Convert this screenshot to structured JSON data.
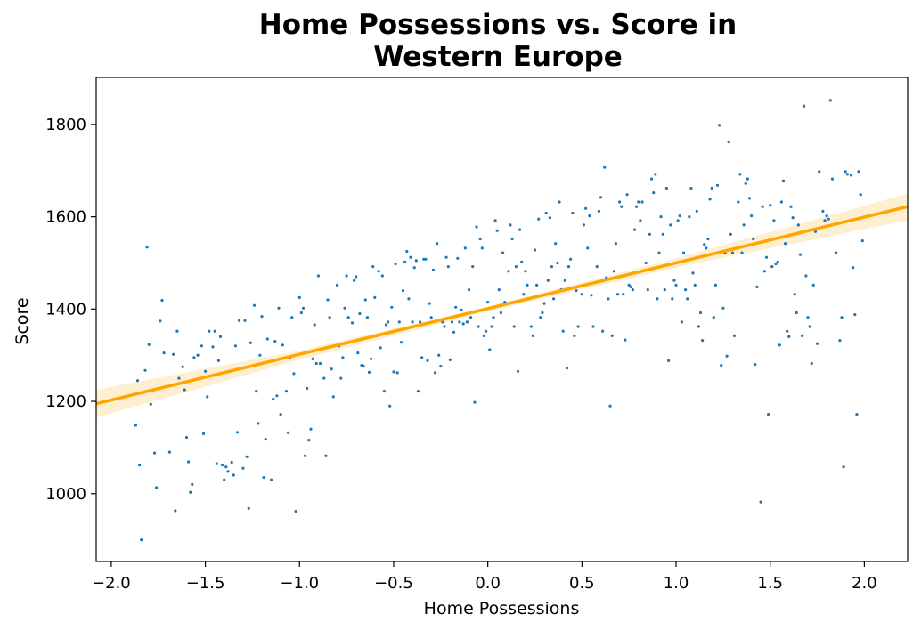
{
  "chart_data": {
    "type": "scatter",
    "title": [
      "Home Possessions vs. Score in",
      "Western Europe"
    ],
    "xlabel": "Home Possessions",
    "ylabel": "Score",
    "xlim": [
      -2.08,
      2.23
    ],
    "ylim": [
      853,
      1902
    ],
    "xticks": [
      -2.0,
      -1.5,
      -1.0,
      -0.5,
      0.0,
      0.5,
      1.0,
      1.5,
      2.0
    ],
    "xtick_labels": [
      "−2.0",
      "−1.5",
      "−1.0",
      "−0.5",
      "0.0",
      "0.5",
      "1.0",
      "1.5",
      "2.0"
    ],
    "yticks": [
      1000,
      1200,
      1400,
      1600,
      1800
    ],
    "ytick_labels": [
      "1000",
      "1200",
      "1400",
      "1600",
      "1800"
    ],
    "grid": false,
    "colors": {
      "points": "#1f77b4",
      "fit_line": "#ffa500",
      "confidence_band": "#ffa500"
    },
    "regression": {
      "x": [
        -2.08,
        2.23
      ],
      "y": [
        1195,
        1622
      ]
    },
    "confidence_band": {
      "x": [
        -2.08,
        -1.0,
        0.0,
        1.0,
        2.23
      ],
      "lower": [
        1165,
        1290,
        1395,
        1490,
        1592
      ],
      "upper": [
        1225,
        1310,
        1405,
        1510,
        1650
      ]
    },
    "points": [
      [
        -1.84,
        900
      ],
      [
        -1.85,
        1062
      ],
      [
        -1.87,
        1148
      ],
      [
        -1.86,
        1245
      ],
      [
        -1.82,
        1267
      ],
      [
        -1.81,
        1534
      ],
      [
        -1.79,
        1194
      ],
      [
        -1.78,
        1222
      ],
      [
        -1.8,
        1323
      ],
      [
        -1.77,
        1088
      ],
      [
        -1.76,
        1013
      ],
      [
        -1.74,
        1374
      ],
      [
        -1.73,
        1419
      ],
      [
        -1.72,
        1305
      ],
      [
        -1.71,
        1232
      ],
      [
        -1.69,
        1090
      ],
      [
        -1.67,
        1302
      ],
      [
        -1.66,
        963
      ],
      [
        -1.65,
        1352
      ],
      [
        -1.64,
        1250
      ],
      [
        -1.62,
        1275
      ],
      [
        -1.61,
        1225
      ],
      [
        -1.6,
        1122
      ],
      [
        -1.59,
        1069
      ],
      [
        -1.58,
        1003
      ],
      [
        -1.57,
        1020
      ],
      [
        -1.56,
        1295
      ],
      [
        -1.54,
        1300
      ],
      [
        -1.52,
        1320
      ],
      [
        -1.51,
        1130
      ],
      [
        -1.5,
        1265
      ],
      [
        -1.49,
        1210
      ],
      [
        -1.48,
        1352
      ],
      [
        -1.46,
        1318
      ],
      [
        -1.45,
        1352
      ],
      [
        -1.44,
        1065
      ],
      [
        -1.43,
        1288
      ],
      [
        -1.42,
        1340
      ],
      [
        -1.41,
        1062
      ],
      [
        -1.4,
        1030
      ],
      [
        -1.39,
        1058
      ],
      [
        -1.38,
        1048
      ],
      [
        -1.36,
        1068
      ],
      [
        -1.35,
        1040
      ],
      [
        -1.34,
        1320
      ],
      [
        -1.33,
        1133
      ],
      [
        -1.32,
        1375
      ],
      [
        -1.3,
        1055
      ],
      [
        -1.29,
        1375
      ],
      [
        -1.28,
        1080
      ],
      [
        -1.27,
        968
      ],
      [
        -1.26,
        1327
      ],
      [
        -1.24,
        1408
      ],
      [
        -1.23,
        1222
      ],
      [
        -1.22,
        1152
      ],
      [
        -1.21,
        1300
      ],
      [
        -1.2,
        1384
      ],
      [
        -1.19,
        1035
      ],
      [
        -1.18,
        1118
      ],
      [
        -1.17,
        1335
      ],
      [
        -1.15,
        1030
      ],
      [
        -1.14,
        1205
      ],
      [
        -1.13,
        1330
      ],
      [
        -1.12,
        1212
      ],
      [
        -1.11,
        1402
      ],
      [
        -1.1,
        1172
      ],
      [
        -1.09,
        1322
      ],
      [
        -1.07,
        1222
      ],
      [
        -1.06,
        1132
      ],
      [
        -1.05,
        1295
      ],
      [
        -1.04,
        1382
      ],
      [
        -1.03,
        1260
      ],
      [
        -1.02,
        962
      ],
      [
        -1.0,
        1425
      ],
      [
        -0.99,
        1392
      ],
      [
        -0.98,
        1402
      ],
      [
        -0.97,
        1082
      ],
      [
        -0.96,
        1228
      ],
      [
        -0.95,
        1116
      ],
      [
        -0.94,
        1140
      ],
      [
        -0.93,
        1292
      ],
      [
        -0.92,
        1366
      ],
      [
        -0.91,
        1282
      ],
      [
        -0.9,
        1472
      ],
      [
        -0.89,
        1282
      ],
      [
        -0.87,
        1250
      ],
      [
        -0.86,
        1082
      ],
      [
        -0.85,
        1420
      ],
      [
        -0.84,
        1382
      ],
      [
        -0.83,
        1270
      ],
      [
        -0.82,
        1210
      ],
      [
        -0.8,
        1452
      ],
      [
        -0.79,
        1320
      ],
      [
        -0.78,
        1250
      ],
      [
        -0.77,
        1295
      ],
      [
        -0.76,
        1402
      ],
      [
        -0.75,
        1472
      ],
      [
        -0.74,
        1382
      ],
      [
        -0.72,
        1370
      ],
      [
        -0.71,
        1462
      ],
      [
        -0.7,
        1470
      ],
      [
        -0.69,
        1305
      ],
      [
        -0.68,
        1390
      ],
      [
        -0.67,
        1278
      ],
      [
        -0.66,
        1276
      ],
      [
        -0.65,
        1420
      ],
      [
        -0.64,
        1382
      ],
      [
        -0.63,
        1263
      ],
      [
        -0.62,
        1292
      ],
      [
        -0.61,
        1492
      ],
      [
        -0.6,
        1425
      ],
      [
        -0.59,
        1342
      ],
      [
        -0.58,
        1482
      ],
      [
        -0.57,
        1316
      ],
      [
        -0.56,
        1472
      ],
      [
        -0.55,
        1222
      ],
      [
        -0.54,
        1366
      ],
      [
        -0.53,
        1372
      ],
      [
        -0.52,
        1190
      ],
      [
        -0.51,
        1404
      ],
      [
        -0.5,
        1264
      ],
      [
        -0.49,
        1498
      ],
      [
        -0.48,
        1262
      ],
      [
        -0.47,
        1372
      ],
      [
        -0.46,
        1328
      ],
      [
        -0.45,
        1440
      ],
      [
        -0.44,
        1502
      ],
      [
        -0.43,
        1525
      ],
      [
        -0.42,
        1422
      ],
      [
        -0.41,
        1512
      ],
      [
        -0.4,
        1372
      ],
      [
        -0.39,
        1490
      ],
      [
        -0.38,
        1505
      ],
      [
        -0.37,
        1222
      ],
      [
        -0.36,
        1372
      ],
      [
        -0.35,
        1295
      ],
      [
        -0.34,
        1508
      ],
      [
        -0.33,
        1508
      ],
      [
        -0.32,
        1288
      ],
      [
        -0.31,
        1412
      ],
      [
        -0.3,
        1382
      ],
      [
        -0.29,
        1485
      ],
      [
        -0.28,
        1262
      ],
      [
        -0.27,
        1542
      ],
      [
        -0.26,
        1300
      ],
      [
        -0.25,
        1276
      ],
      [
        -0.24,
        1372
      ],
      [
        -0.23,
        1362
      ],
      [
        -0.22,
        1512
      ],
      [
        -0.21,
        1492
      ],
      [
        -0.2,
        1290
      ],
      [
        -0.19,
        1372
      ],
      [
        -0.18,
        1350
      ],
      [
        -0.17,
        1404
      ],
      [
        -0.16,
        1510
      ],
      [
        -0.15,
        1372
      ],
      [
        -0.14,
        1398
      ],
      [
        -0.13,
        1368
      ],
      [
        -0.12,
        1532
      ],
      [
        -0.11,
        1372
      ],
      [
        -0.1,
        1442
      ],
      [
        -0.09,
        1382
      ],
      [
        -0.08,
        1492
      ],
      [
        -0.07,
        1198
      ],
      [
        -0.06,
        1578
      ],
      [
        -0.05,
        1362
      ],
      [
        -0.04,
        1552
      ],
      [
        -0.03,
        1532
      ],
      [
        -0.02,
        1342
      ],
      [
        -0.01,
        1352
      ],
      [
        0.0,
        1415
      ],
      [
        0.01,
        1312
      ],
      [
        0.02,
        1362
      ],
      [
        0.03,
        1382
      ],
      [
        0.04,
        1592
      ],
      [
        0.05,
        1570
      ],
      [
        0.06,
        1442
      ],
      [
        0.07,
        1392
      ],
      [
        0.08,
        1522
      ],
      [
        0.09,
        1415
      ],
      [
        0.1,
        1412
      ],
      [
        0.11,
        1482
      ],
      [
        0.12,
        1582
      ],
      [
        0.13,
        1552
      ],
      [
        0.14,
        1362
      ],
      [
        0.15,
        1492
      ],
      [
        0.16,
        1265
      ],
      [
        0.17,
        1572
      ],
      [
        0.18,
        1502
      ],
      [
        0.19,
        1432
      ],
      [
        0.2,
        1482
      ],
      [
        0.21,
        1452
      ],
      [
        0.22,
        1422
      ],
      [
        0.23,
        1362
      ],
      [
        0.24,
        1342
      ],
      [
        0.25,
        1528
      ],
      [
        0.26,
        1452
      ],
      [
        0.27,
        1595
      ],
      [
        0.28,
        1382
      ],
      [
        0.29,
        1392
      ],
      [
        0.3,
        1412
      ],
      [
        0.31,
        1608
      ],
      [
        0.32,
        1462
      ],
      [
        0.33,
        1598
      ],
      [
        0.34,
        1492
      ],
      [
        0.35,
        1422
      ],
      [
        0.36,
        1542
      ],
      [
        0.37,
        1500
      ],
      [
        0.38,
        1632
      ],
      [
        0.39,
        1442
      ],
      [
        0.4,
        1352
      ],
      [
        0.41,
        1462
      ],
      [
        0.42,
        1272
      ],
      [
        0.43,
        1492
      ],
      [
        0.44,
        1508
      ],
      [
        0.45,
        1608
      ],
      [
        0.46,
        1342
      ],
      [
        0.47,
        1440
      ],
      [
        0.48,
        1362
      ],
      [
        0.5,
        1432
      ],
      [
        0.51,
        1582
      ],
      [
        0.52,
        1618
      ],
      [
        0.53,
        1532
      ],
      [
        0.54,
        1602
      ],
      [
        0.55,
        1430
      ],
      [
        0.56,
        1362
      ],
      [
        0.58,
        1492
      ],
      [
        0.59,
        1612
      ],
      [
        0.6,
        1642
      ],
      [
        0.61,
        1352
      ],
      [
        0.62,
        1707
      ],
      [
        0.63,
        1468
      ],
      [
        0.64,
        1422
      ],
      [
        0.65,
        1190
      ],
      [
        0.66,
        1342
      ],
      [
        0.67,
        1482
      ],
      [
        0.68,
        1542
      ],
      [
        0.69,
        1432
      ],
      [
        0.7,
        1632
      ],
      [
        0.71,
        1622
      ],
      [
        0.72,
        1432
      ],
      [
        0.73,
        1333
      ],
      [
        0.74,
        1648
      ],
      [
        0.75,
        1452
      ],
      [
        0.76,
        1448
      ],
      [
        0.77,
        1442
      ],
      [
        0.78,
        1572
      ],
      [
        0.79,
        1622
      ],
      [
        0.8,
        1632
      ],
      [
        0.81,
        1592
      ],
      [
        0.82,
        1632
      ],
      [
        0.84,
        1500
      ],
      [
        0.85,
        1442
      ],
      [
        0.86,
        1562
      ],
      [
        0.87,
        1682
      ],
      [
        0.88,
        1652
      ],
      [
        0.89,
        1692
      ],
      [
        0.9,
        1422
      ],
      [
        0.91,
        1522
      ],
      [
        0.92,
        1600
      ],
      [
        0.93,
        1562
      ],
      [
        0.94,
        1442
      ],
      [
        0.95,
        1662
      ],
      [
        0.96,
        1288
      ],
      [
        0.97,
        1582
      ],
      [
        0.98,
        1422
      ],
      [
        0.99,
        1462
      ],
      [
        1.0,
        1452
      ],
      [
        1.01,
        1592
      ],
      [
        1.02,
        1602
      ],
      [
        1.03,
        1372
      ],
      [
        1.04,
        1522
      ],
      [
        1.05,
        1442
      ],
      [
        1.06,
        1422
      ],
      [
        1.07,
        1600
      ],
      [
        1.08,
        1662
      ],
      [
        1.09,
        1478
      ],
      [
        1.1,
        1452
      ],
      [
        1.11,
        1612
      ],
      [
        1.12,
        1362
      ],
      [
        1.13,
        1392
      ],
      [
        1.14,
        1332
      ],
      [
        1.15,
        1540
      ],
      [
        1.16,
        1532
      ],
      [
        1.17,
        1552
      ],
      [
        1.18,
        1638
      ],
      [
        1.19,
        1662
      ],
      [
        1.2,
        1382
      ],
      [
        1.21,
        1452
      ],
      [
        1.22,
        1668
      ],
      [
        1.23,
        1798
      ],
      [
        1.24,
        1278
      ],
      [
        1.25,
        1402
      ],
      [
        1.26,
        1522
      ],
      [
        1.27,
        1298
      ],
      [
        1.28,
        1762
      ],
      [
        1.29,
        1562
      ],
      [
        1.3,
        1522
      ],
      [
        1.31,
        1342
      ],
      [
        1.33,
        1632
      ],
      [
        1.34,
        1692
      ],
      [
        1.35,
        1522
      ],
      [
        1.36,
        1582
      ],
      [
        1.37,
        1672
      ],
      [
        1.38,
        1682
      ],
      [
        1.39,
        1640
      ],
      [
        1.4,
        1602
      ],
      [
        1.41,
        1552
      ],
      [
        1.42,
        1280
      ],
      [
        1.43,
        1448
      ],
      [
        1.45,
        982
      ],
      [
        1.46,
        1622
      ],
      [
        1.47,
        1482
      ],
      [
        1.48,
        1512
      ],
      [
        1.49,
        1172
      ],
      [
        1.5,
        1625
      ],
      [
        1.51,
        1492
      ],
      [
        1.52,
        1592
      ],
      [
        1.53,
        1498
      ],
      [
        1.54,
        1502
      ],
      [
        1.55,
        1322
      ],
      [
        1.56,
        1632
      ],
      [
        1.57,
        1678
      ],
      [
        1.58,
        1542
      ],
      [
        1.59,
        1352
      ],
      [
        1.6,
        1340
      ],
      [
        1.61,
        1622
      ],
      [
        1.62,
        1598
      ],
      [
        1.63,
        1432
      ],
      [
        1.64,
        1392
      ],
      [
        1.65,
        1582
      ],
      [
        1.66,
        1518
      ],
      [
        1.67,
        1342
      ],
      [
        1.68,
        1840
      ],
      [
        1.69,
        1472
      ],
      [
        1.7,
        1382
      ],
      [
        1.71,
        1362
      ],
      [
        1.72,
        1282
      ],
      [
        1.73,
        1452
      ],
      [
        1.74,
        1568
      ],
      [
        1.75,
        1325
      ],
      [
        1.76,
        1698
      ],
      [
        1.78,
        1612
      ],
      [
        1.79,
        1592
      ],
      [
        1.8,
        1602
      ],
      [
        1.81,
        1595
      ],
      [
        1.82,
        1852
      ],
      [
        1.83,
        1682
      ],
      [
        1.85,
        1522
      ],
      [
        1.87,
        1332
      ],
      [
        1.88,
        1382
      ],
      [
        1.89,
        1058
      ],
      [
        1.9,
        1698
      ],
      [
        1.91,
        1692
      ],
      [
        1.93,
        1690
      ],
      [
        1.94,
        1490
      ],
      [
        1.95,
        1388
      ],
      [
        1.96,
        1172
      ],
      [
        1.97,
        1698
      ],
      [
        1.98,
        1648
      ],
      [
        1.99,
        1548
      ]
    ]
  }
}
